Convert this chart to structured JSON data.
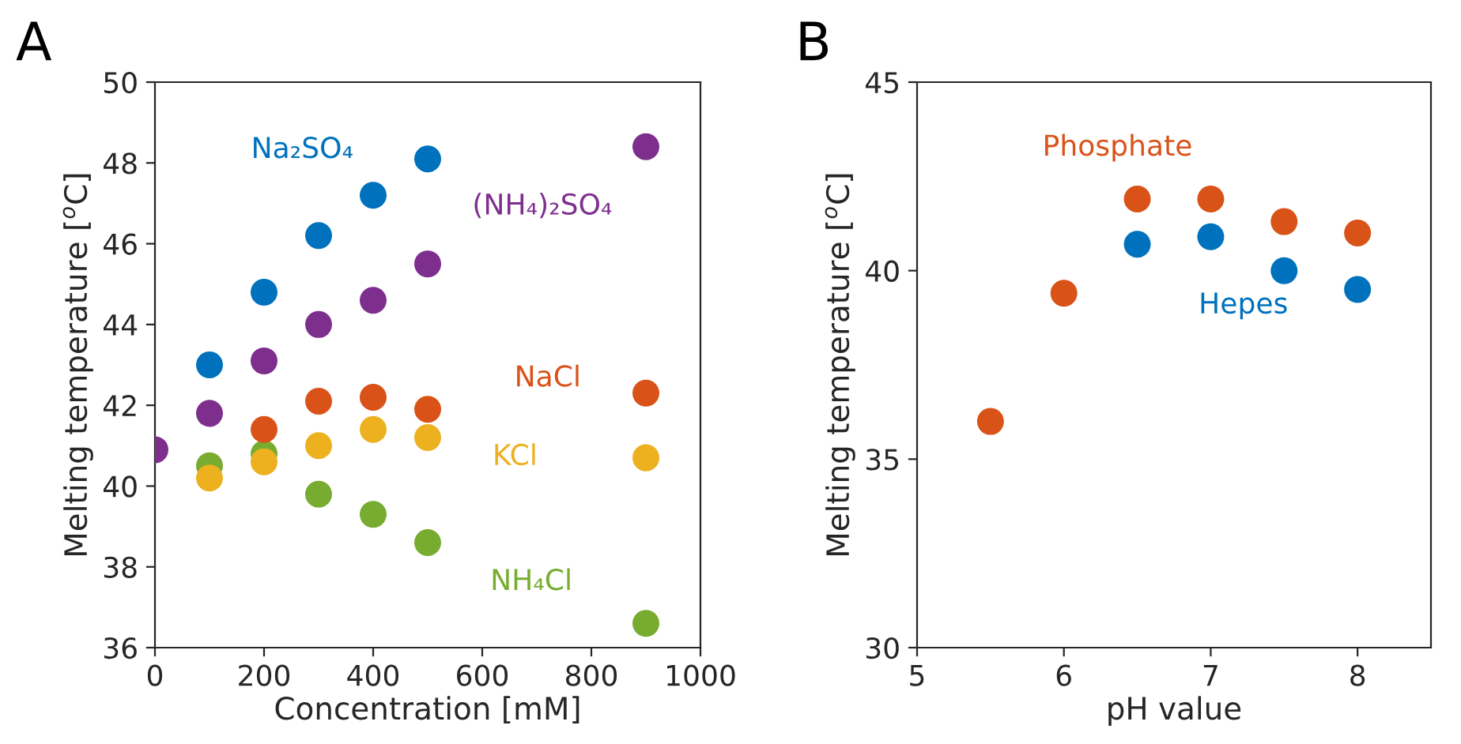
{
  "chart_data": [
    {
      "type": "scatter",
      "annotations": [
        "A"
      ],
      "xlabel": "Concentration [mM]",
      "ylabel": "Melting temperature [$^{o}$C]",
      "xlim": [
        0,
        1000
      ],
      "ylim": [
        36,
        50
      ],
      "xticks": [
        0,
        200,
        400,
        600,
        800,
        1000
      ],
      "yticks": [
        36,
        38,
        40,
        42,
        44,
        46,
        48,
        50
      ],
      "grid": false,
      "legend": false,
      "marker": "circle",
      "series": [
        {
          "name": "Na₂SO₄",
          "color": "#0072bd",
          "x": [
            100,
            200,
            300,
            400,
            500
          ],
          "values": [
            43.0,
            44.8,
            46.2,
            47.2,
            48.1
          ]
        },
        {
          "name": "(NH₄)₂SO₄",
          "color": "#7e2f8e",
          "x": [
            0,
            100,
            200,
            300,
            400,
            500,
            900
          ],
          "values": [
            40.9,
            41.8,
            43.1,
            44.0,
            44.6,
            45.5,
            48.4
          ]
        },
        {
          "name": "NaCl",
          "color": "#d95319",
          "x": [
            200,
            300,
            400,
            500,
            900
          ],
          "values": [
            41.4,
            42.1,
            42.2,
            41.9,
            42.3
          ]
        },
        {
          "name": "KCl",
          "color": "#edb120",
          "x": [
            100,
            200,
            300,
            400,
            500,
            900
          ],
          "values": [
            40.2,
            40.6,
            41.0,
            41.4,
            41.2,
            40.7
          ]
        },
        {
          "name": "NH₄Cl",
          "color": "#77ac30",
          "x": [
            100,
            200,
            300,
            400,
            500,
            900
          ],
          "values": [
            40.5,
            40.8,
            39.8,
            39.3,
            38.6,
            36.6
          ]
        }
      ]
    },
    {
      "type": "scatter",
      "annotations": [
        "B"
      ],
      "xlabel": "pH value",
      "ylabel": "Melting temperature [$^{o}$C]",
      "xlim": [
        5,
        8.5
      ],
      "ylim": [
        30,
        45
      ],
      "xticks": [
        5,
        6,
        7,
        8
      ],
      "yticks": [
        30,
        35,
        40,
        45
      ],
      "grid": false,
      "legend": false,
      "marker": "circle",
      "series": [
        {
          "name": "Phosphate",
          "color": "#d95319",
          "x": [
            5.5,
            6,
            6.5,
            7,
            7.5,
            8
          ],
          "values": [
            36.0,
            39.4,
            41.9,
            41.9,
            41.3,
            41.0
          ]
        },
        {
          "name": "Hepes",
          "color": "#0072bd",
          "x": [
            6.5,
            7,
            7.5,
            8
          ],
          "values": [
            40.7,
            40.9,
            40.0,
            39.5
          ]
        }
      ]
    }
  ]
}
